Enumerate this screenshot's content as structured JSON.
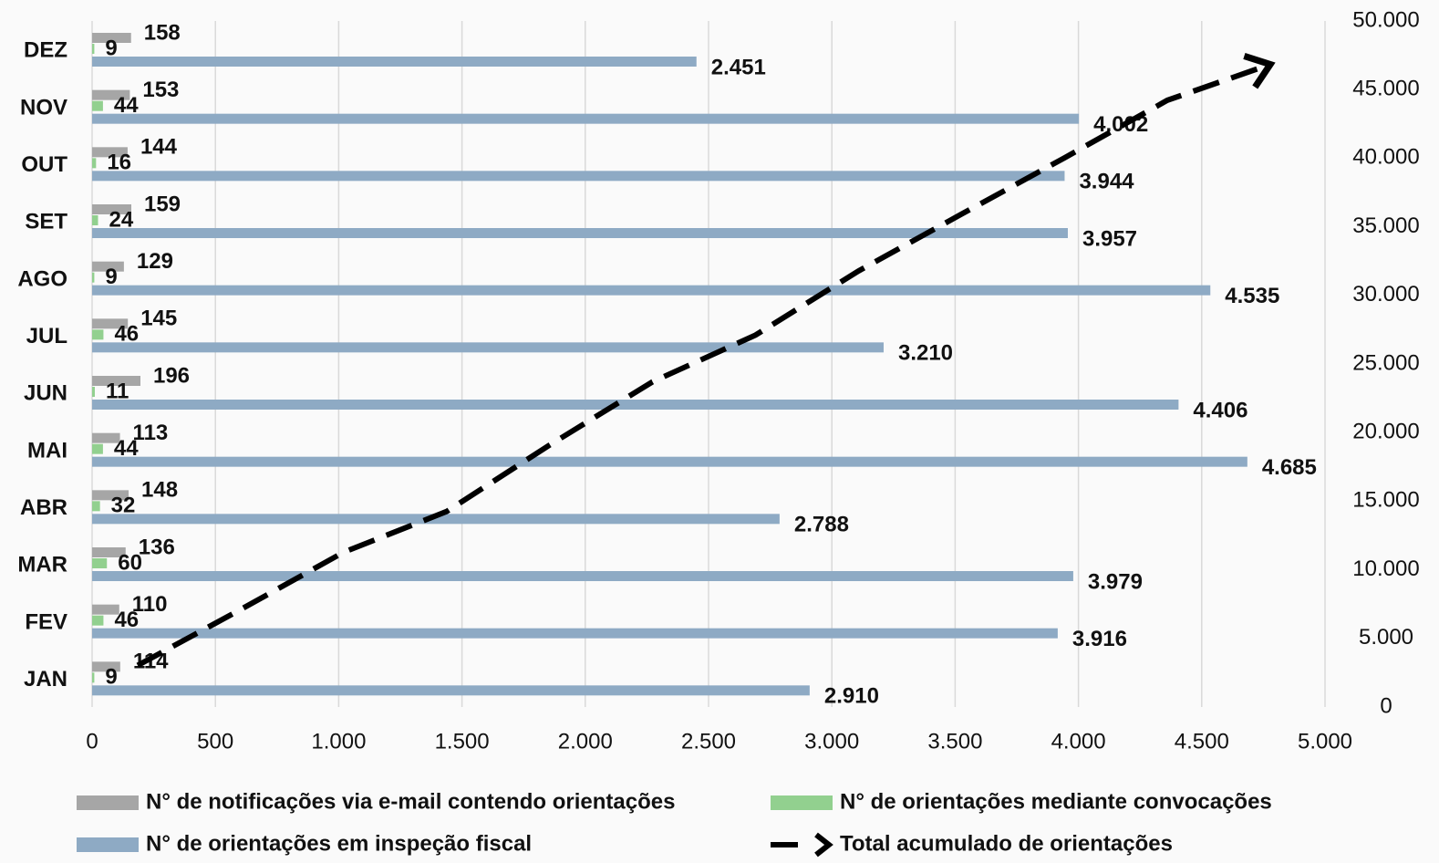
{
  "chart_data": {
    "type": "bar",
    "orientation": "horizontal",
    "categories": [
      "JAN",
      "FEV",
      "MAR",
      "ABR",
      "MAI",
      "JUN",
      "JUL",
      "AGO",
      "SET",
      "OUT",
      "NOV",
      "DEZ"
    ],
    "series": [
      {
        "name": "N° de notificações via e-mail contendo orientações",
        "color": "#a6a6a6",
        "type": "bar",
        "values": [
          114,
          110,
          136,
          148,
          113,
          196,
          145,
          129,
          159,
          144,
          153,
          158
        ]
      },
      {
        "name": "N° de orientações mediante convocações",
        "color": "#92d08f",
        "type": "bar",
        "values": [
          9,
          46,
          60,
          32,
          44,
          11,
          46,
          9,
          24,
          16,
          44,
          9
        ]
      },
      {
        "name": "N° de orientações em inspeção fiscal",
        "color": "#8eaac4",
        "type": "bar",
        "values": [
          2910,
          3916,
          3979,
          2788,
          4685,
          4406,
          3210,
          4535,
          3957,
          3944,
          4002,
          2451
        ],
        "value_labels": [
          "2.910",
          "3.916",
          "3.979",
          "2.788",
          "4.685",
          "4.406",
          "3.210",
          "4.535",
          "3.957",
          "3.944",
          "4.002",
          "2.451"
        ]
      },
      {
        "name": "Total acumulado de orientações",
        "color": "#000000",
        "type": "line",
        "axis": "y2",
        "dashed": true,
        "arrow": true,
        "values": [
          3033,
          7105,
          11280,
          14248,
          19090,
          23703,
          27104,
          31777,
          35917,
          40021,
          44220,
          46838
        ]
      }
    ],
    "xlim": [
      0,
      5000
    ],
    "xticks": [
      0,
      500,
      {
        "value": 1000,
        "label": "1.000"
      },
      {
        "value": 1500,
        "label": "1.500"
      },
      {
        "value": 2000,
        "label": "2.000"
      },
      {
        "value": 2500,
        "label": "2.500"
      },
      {
        "value": 3000,
        "label": "3.000"
      },
      {
        "value": 3500,
        "label": "3.500"
      },
      {
        "value": 4000,
        "label": "4.000"
      },
      {
        "value": 4500,
        "label": "4.500"
      },
      {
        "value": 5000,
        "label": "5.000"
      }
    ],
    "y2lim": [
      0,
      50000
    ],
    "y2ticks": [
      0,
      {
        "value": 5000,
        "label": "5.000"
      },
      {
        "value": 10000,
        "label": "10.000"
      },
      {
        "value": 15000,
        "label": "15.000"
      },
      {
        "value": 20000,
        "label": "20.000"
      },
      {
        "value": 25000,
        "label": "25.000"
      },
      {
        "value": 30000,
        "label": "30.000"
      },
      {
        "value": 35000,
        "label": "35.000"
      },
      {
        "value": 40000,
        "label": "40.000"
      },
      {
        "value": 45000,
        "label": "45.000"
      },
      {
        "value": 50000,
        "label": "50.000"
      }
    ],
    "grid": true,
    "legend": "bottom"
  }
}
